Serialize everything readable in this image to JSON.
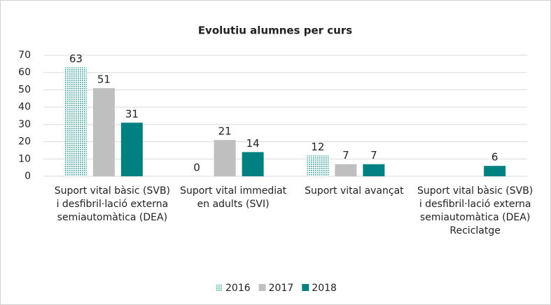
{
  "chart_data": {
    "type": "bar",
    "title": "Evolutiu alumnes per curs",
    "categories": [
      "Suport vital bàsic (SVB) i desfibril·lació externa semiautomàtica (DEA)",
      "Suport vital immediat en adults (SVI)",
      "Suport vital avançat",
      "Suport vital bàsic (SVB) i desfibril·lació externa semiautomàtica (DEA) Reciclatge"
    ],
    "series": [
      {
        "name": "2016",
        "color": "#2e9a9a",
        "pattern": "dotted",
        "values": [
          63,
          0,
          12,
          null
        ]
      },
      {
        "name": "2017",
        "color": "#bfbfbf",
        "values": [
          51,
          21,
          7,
          null
        ]
      },
      {
        "name": "2018",
        "color": "#008080",
        "values": [
          31,
          14,
          7,
          6
        ]
      }
    ],
    "ylim": [
      0,
      70
    ],
    "yticks": [
      0,
      10,
      20,
      30,
      40,
      50,
      60,
      70
    ],
    "grid": true,
    "legend": "bottom"
  }
}
